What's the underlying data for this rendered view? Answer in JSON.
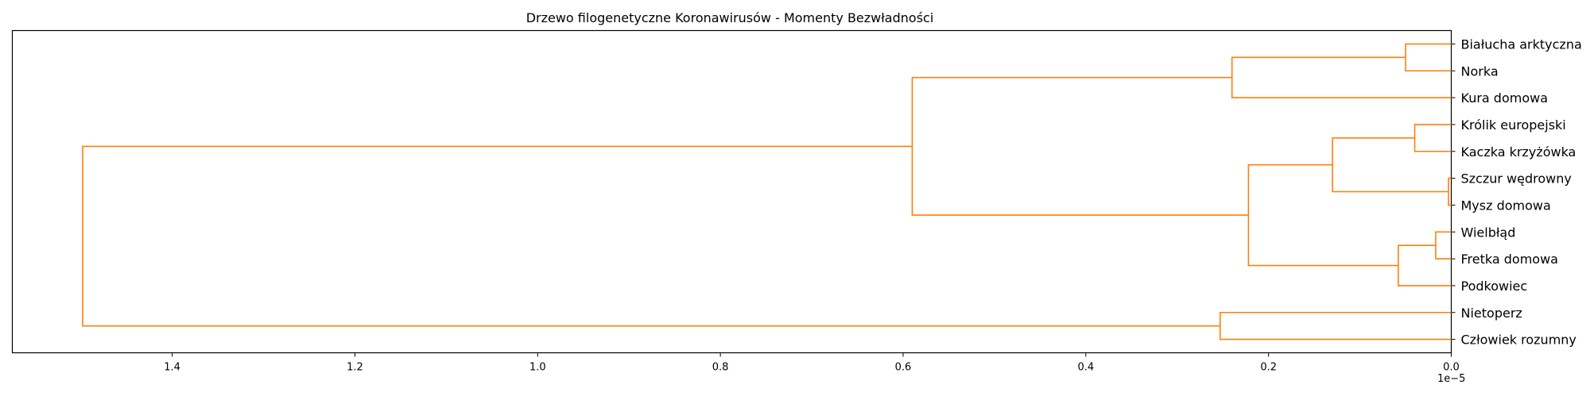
{
  "chart_data": {
    "type": "dendrogram",
    "title": "Drzewo filogenetyczne Koronawirusów - Momenty Bezwładności",
    "orientation": "left",
    "link_color": "#ff7f0e",
    "x_axis": {
      "xlim": [
        1.575,
        0.0
      ],
      "ticks": [
        1.4,
        1.2,
        1.0,
        0.8,
        0.6,
        0.4,
        0.2,
        0.0
      ],
      "tick_labels": [
        "1.4",
        "1.2",
        "1.0",
        "0.8",
        "0.6",
        "0.4",
        "0.2",
        "0.0"
      ],
      "offset_text": "1e−5",
      "xlabel": ""
    },
    "leaves": [
      "Białucha arktyczna",
      "Norka",
      "Kura domowa",
      "Królik europejski",
      "Kaczka krzyżówka",
      "Szczur wędrowny",
      "Mysz domowa",
      "Wielbłąd",
      "Fretka domowa",
      "Podkowiec",
      "Nietoperz",
      "Człowiek rozumny"
    ],
    "merges": [
      {
        "children": [
          "Białucha arktyczna",
          "Norka"
        ],
        "height": 0.05
      },
      {
        "children": [
          "Szczur wędrowny",
          "Mysz domowa"
        ],
        "height": 0.003
      },
      {
        "children": [
          "Królik europejski",
          "Kaczka krzyżówka"
        ],
        "height": 0.04
      },
      {
        "children": [
          "Wielbłąd",
          "Fretka domowa"
        ],
        "height": 0.017
      },
      {
        "children": [
          "merge:0",
          "Kura domowa"
        ],
        "height": 0.24
      },
      {
        "children": [
          "merge:2",
          "merge:1"
        ],
        "height": 0.13
      },
      {
        "children": [
          "merge:3",
          "Podkowiec"
        ],
        "height": 0.058
      },
      {
        "children": [
          "merge:5",
          "merge:6"
        ],
        "height": 0.222
      },
      {
        "children": [
          "merge:4",
          "merge:7"
        ],
        "height": 0.59
      },
      {
        "children": [
          "Nietoperz",
          "Człowiek rozumny"
        ],
        "height": 0.253
      },
      {
        "children": [
          "merge:8",
          "merge:9"
        ],
        "height": 1.498
      }
    ]
  }
}
